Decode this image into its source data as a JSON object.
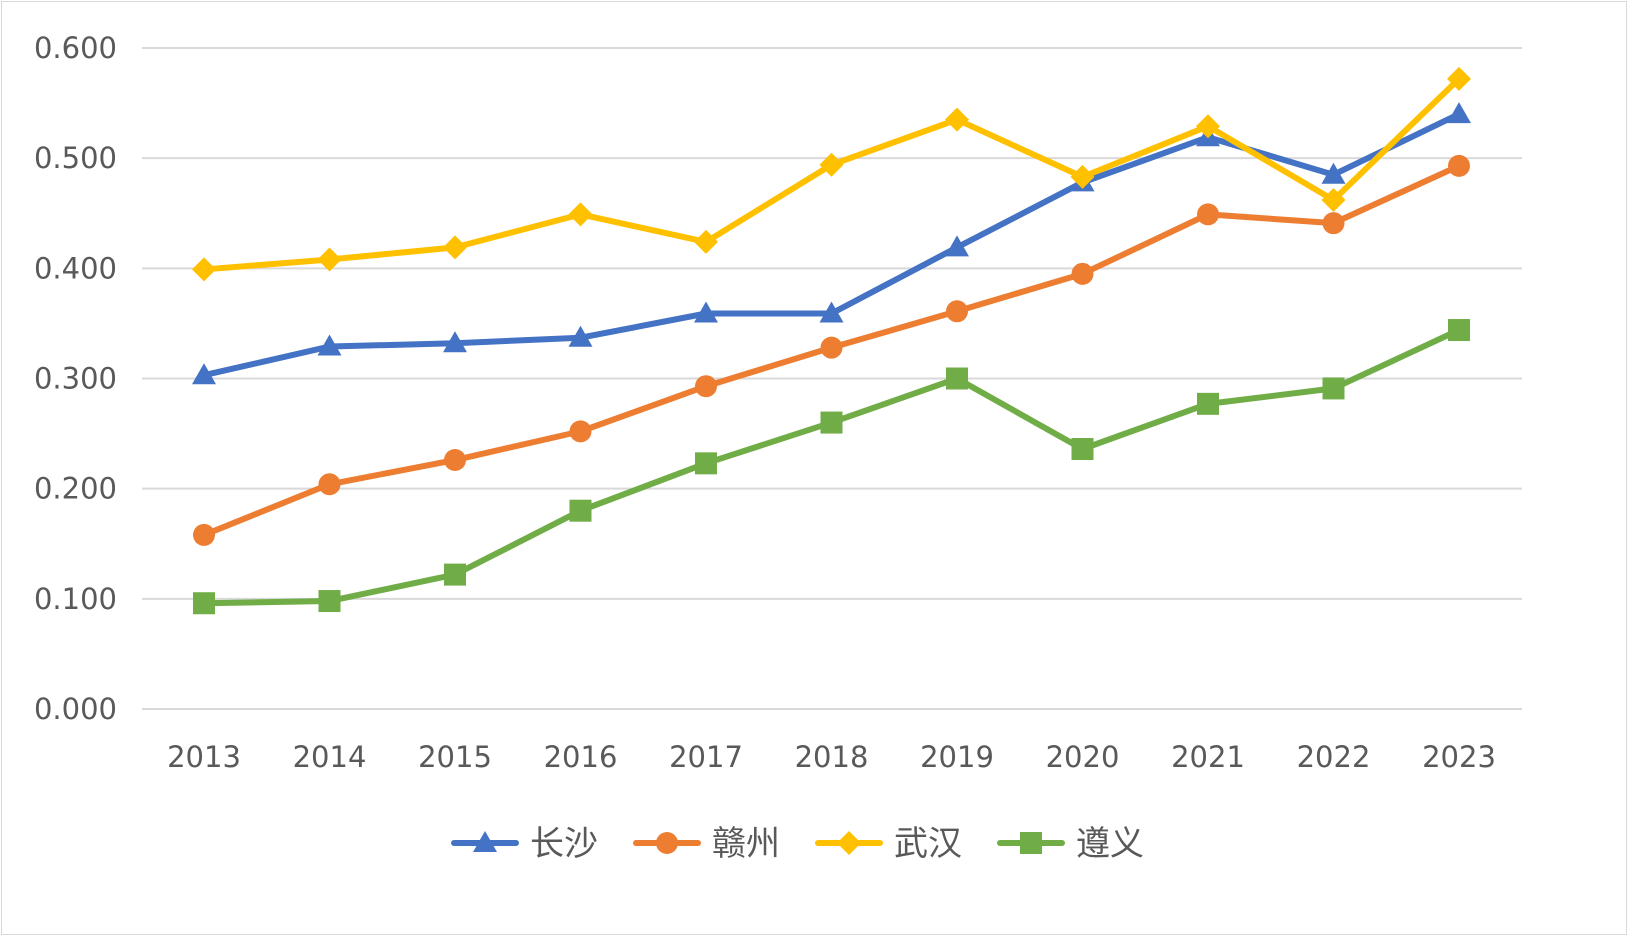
{
  "chart_data": {
    "type": "line",
    "title": "",
    "xlabel": "",
    "ylabel": "",
    "x": [
      "2013",
      "2014",
      "2015",
      "2016",
      "2017",
      "2018",
      "2019",
      "2020",
      "2021",
      "2022",
      "2023"
    ],
    "ylim": [
      0,
      0.6
    ],
    "yticks": [
      "0.000",
      "0.100",
      "0.200",
      "0.300",
      "0.400",
      "0.500",
      "0.600"
    ],
    "grid": true,
    "legend_position": "bottom",
    "series": [
      {
        "name": "长沙",
        "color": "#4472C4",
        "marker": "triangle",
        "values": [
          0.303,
          0.329,
          0.332,
          0.337,
          0.359,
          0.359,
          0.419,
          0.478,
          0.519,
          0.485,
          0.54
        ]
      },
      {
        "name": "赣州",
        "color": "#ED7D31",
        "marker": "circle",
        "values": [
          0.158,
          0.204,
          0.226,
          0.252,
          0.293,
          0.328,
          0.361,
          0.395,
          0.449,
          0.441,
          0.493
        ]
      },
      {
        "name": "武汉",
        "color": "#FFC000",
        "marker": "diamond",
        "values": [
          0.399,
          0.408,
          0.419,
          0.449,
          0.424,
          0.494,
          0.535,
          0.483,
          0.529,
          0.462,
          0.572
        ]
      },
      {
        "name": "遵义",
        "color": "#70AD47",
        "marker": "square",
        "values": [
          0.096,
          0.098,
          0.122,
          0.18,
          0.223,
          0.26,
          0.3,
          0.236,
          0.277,
          0.291,
          0.344
        ]
      }
    ]
  }
}
